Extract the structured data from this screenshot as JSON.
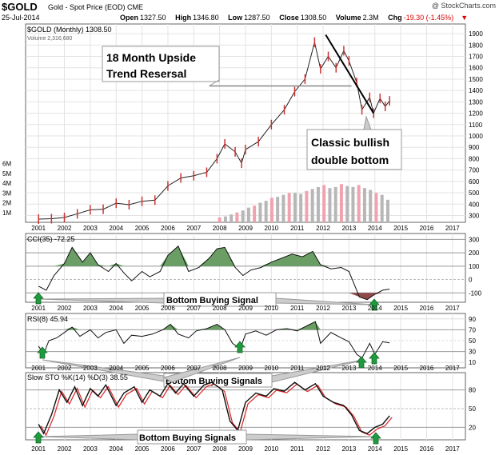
{
  "header": {
    "symbol": "$GOLD",
    "name": "Gold - Spot Price (EOD)",
    "exchange": "CME",
    "date": "25-Jul-2014",
    "brand": "@ StockCharts.com",
    "open_label": "Open",
    "open": "1327.50",
    "high_label": "High",
    "high": "1346.80",
    "low_label": "Low",
    "low": "1287.50",
    "close_label": "Close",
    "close": "1308.50",
    "volume_label": "Volume",
    "volume": "2.3M",
    "chg_label": "Chg",
    "chg": "-19.30 (-1.45%)"
  },
  "chart_data": {
    "type": "line",
    "x_ticks": [
      "2001",
      "2002",
      "2003",
      "2004",
      "2005",
      "2006",
      "2007",
      "2008",
      "2009",
      "2010",
      "2011",
      "2012",
      "2013",
      "2014",
      "2015",
      "2016",
      "2017"
    ],
    "price_panel": {
      "legend_label": "$GOLD (Monthly) 1308.50",
      "volume_legend_label": "Volume 2,316,680",
      "y_ticks": [
        300,
        400,
        500,
        600,
        700,
        800,
        900,
        1000,
        1100,
        1200,
        1300,
        1400,
        1500,
        1600,
        1700,
        1800,
        1900
      ],
      "volume_ticks": [
        "1M",
        "2M",
        "3M",
        "4M",
        "5M",
        "6M"
      ],
      "ylim": [
        240,
        1950
      ],
      "price_points": [
        [
          2001.0,
          268
        ],
        [
          2001.5,
          272
        ],
        [
          2002.0,
          282
        ],
        [
          2002.5,
          315
        ],
        [
          2003.0,
          350
        ],
        [
          2003.5,
          355
        ],
        [
          2004.0,
          408
        ],
        [
          2004.5,
          395
        ],
        [
          2005.0,
          425
        ],
        [
          2005.5,
          435
        ],
        [
          2006.0,
          560
        ],
        [
          2006.5,
          630
        ],
        [
          2007.0,
          650
        ],
        [
          2007.5,
          680
        ],
        [
          2007.9,
          800
        ],
        [
          2008.2,
          930
        ],
        [
          2008.6,
          860
        ],
        [
          2008.85,
          760
        ],
        [
          2009.0,
          880
        ],
        [
          2009.5,
          950
        ],
        [
          2010.0,
          1100
        ],
        [
          2010.5,
          1230
        ],
        [
          2010.9,
          1390
        ],
        [
          2011.3,
          1500
        ],
        [
          2011.67,
          1825
        ],
        [
          2011.9,
          1590
        ],
        [
          2012.2,
          1700
        ],
        [
          2012.5,
          1600
        ],
        [
          2012.8,
          1750
        ],
        [
          2013.0,
          1660
        ],
        [
          2013.3,
          1470
        ],
        [
          2013.5,
          1230
        ],
        [
          2013.8,
          1340
        ],
        [
          2013.95,
          1200
        ],
        [
          2014.2,
          1330
        ],
        [
          2014.4,
          1260
        ],
        [
          2014.57,
          1308.5
        ]
      ],
      "volume_values": [
        0.5,
        0.6,
        0.8,
        1.0,
        1.2,
        1.5,
        1.7,
        2.0,
        2.2,
        2.5,
        2.6,
        2.8,
        3.0,
        3.0,
        2.9,
        3.2,
        3.4,
        3.6,
        3.8,
        3.5,
        3.6,
        3.9,
        3.7,
        3.6,
        3.8,
        3.5,
        3.3,
        3.0,
        2.8,
        2.3
      ],
      "annotation_trend": "18 Month Upside Trend Resersal",
      "annotation_bottom": "Classic bullish double bottom"
    },
    "cci_panel": {
      "legend_label": "CCI(35) -72.25",
      "y_ticks": [
        300,
        200,
        100,
        0,
        -100
      ],
      "ylim": [
        -170,
        320
      ],
      "points": [
        [
          2001.0,
          -50
        ],
        [
          2001.3,
          -80
        ],
        [
          2001.6,
          30
        ],
        [
          2002.0,
          120
        ],
        [
          2002.3,
          240
        ],
        [
          2002.7,
          130
        ],
        [
          2003.0,
          200
        ],
        [
          2003.3,
          110
        ],
        [
          2003.7,
          60
        ],
        [
          2004.0,
          120
        ],
        [
          2004.3,
          50
        ],
        [
          2004.6,
          -10
        ],
        [
          2005.0,
          60
        ],
        [
          2005.3,
          20
        ],
        [
          2005.7,
          60
        ],
        [
          2006.0,
          180
        ],
        [
          2006.4,
          250
        ],
        [
          2006.8,
          60
        ],
        [
          2007.2,
          90
        ],
        [
          2007.6,
          160
        ],
        [
          2007.9,
          230
        ],
        [
          2008.2,
          240
        ],
        [
          2008.6,
          90
        ],
        [
          2008.9,
          30
        ],
        [
          2009.2,
          70
        ],
        [
          2009.6,
          90
        ],
        [
          2010.0,
          130
        ],
        [
          2010.4,
          160
        ],
        [
          2010.8,
          190
        ],
        [
          2011.2,
          170
        ],
        [
          2011.6,
          210
        ],
        [
          2011.9,
          110
        ],
        [
          2012.3,
          80
        ],
        [
          2012.7,
          90
        ],
        [
          2013.0,
          60
        ],
        [
          2013.4,
          -130
        ],
        [
          2013.7,
          -150
        ],
        [
          2014.0,
          -110
        ],
        [
          2014.3,
          -80
        ],
        [
          2014.57,
          -72.25
        ]
      ],
      "signal_label": "Bottom Buying Signal"
    },
    "rsi_panel": {
      "legend_label": "RSI(8) 45.94",
      "y_ticks": [
        90,
        70,
        50,
        30,
        10
      ],
      "ylim": [
        0,
        100
      ],
      "points": [
        [
          2001.0,
          40
        ],
        [
          2001.2,
          25
        ],
        [
          2001.4,
          50
        ],
        [
          2001.7,
          55
        ],
        [
          2002.0,
          65
        ],
        [
          2002.3,
          75
        ],
        [
          2002.6,
          58
        ],
        [
          2003.0,
          70
        ],
        [
          2003.3,
          55
        ],
        [
          2003.6,
          65
        ],
        [
          2004.0,
          70
        ],
        [
          2004.3,
          45
        ],
        [
          2004.6,
          60
        ],
        [
          2005.0,
          58
        ],
        [
          2005.4,
          62
        ],
        [
          2005.8,
          70
        ],
        [
          2006.1,
          80
        ],
        [
          2006.4,
          62
        ],
        [
          2006.8,
          55
        ],
        [
          2007.1,
          68
        ],
        [
          2007.5,
          72
        ],
        [
          2007.9,
          80
        ],
        [
          2008.2,
          70
        ],
        [
          2008.5,
          45
        ],
        [
          2008.8,
          35
        ],
        [
          2009.0,
          62
        ],
        [
          2009.4,
          68
        ],
        [
          2009.8,
          60
        ],
        [
          2010.2,
          70
        ],
        [
          2010.6,
          72
        ],
        [
          2011.0,
          68
        ],
        [
          2011.4,
          78
        ],
        [
          2011.7,
          85
        ],
        [
          2011.9,
          45
        ],
        [
          2012.3,
          65
        ],
        [
          2012.7,
          55
        ],
        [
          2013.0,
          48
        ],
        [
          2013.3,
          25
        ],
        [
          2013.5,
          18
        ],
        [
          2013.8,
          45
        ],
        [
          2014.0,
          25
        ],
        [
          2014.3,
          48
        ],
        [
          2014.57,
          45.94
        ]
      ]
    },
    "sto_panel": {
      "legend_label": "Slow STO %K(14) %D(3) 38.55",
      "y_ticks": [
        80,
        50,
        20
      ],
      "ylim": [
        0,
        100
      ],
      "k_points": [
        [
          2001.0,
          25
        ],
        [
          2001.2,
          10
        ],
        [
          2001.5,
          40
        ],
        [
          2001.8,
          80
        ],
        [
          2002.1,
          60
        ],
        [
          2002.4,
          85
        ],
        [
          2002.7,
          55
        ],
        [
          2003.0,
          82
        ],
        [
          2003.3,
          70
        ],
        [
          2003.6,
          88
        ],
        [
          2004.0,
          55
        ],
        [
          2004.3,
          75
        ],
        [
          2004.7,
          85
        ],
        [
          2005.0,
          60
        ],
        [
          2005.3,
          80
        ],
        [
          2005.7,
          70
        ],
        [
          2006.0,
          90
        ],
        [
          2006.3,
          75
        ],
        [
          2006.6,
          90
        ],
        [
          2007.0,
          70
        ],
        [
          2007.4,
          88
        ],
        [
          2007.7,
          92
        ],
        [
          2008.1,
          80
        ],
        [
          2008.4,
          30
        ],
        [
          2008.7,
          15
        ],
        [
          2009.0,
          60
        ],
        [
          2009.4,
          75
        ],
        [
          2009.8,
          70
        ],
        [
          2010.1,
          82
        ],
        [
          2010.5,
          78
        ],
        [
          2010.9,
          92
        ],
        [
          2011.3,
          80
        ],
        [
          2011.7,
          90
        ],
        [
          2012.0,
          70
        ],
        [
          2012.4,
          60
        ],
        [
          2012.8,
          55
        ],
        [
          2013.1,
          40
        ],
        [
          2013.4,
          15
        ],
        [
          2013.7,
          10
        ],
        [
          2014.0,
          20
        ],
        [
          2014.3,
          25
        ],
        [
          2014.57,
          38.55
        ]
      ]
    }
  },
  "labels": {
    "rsi_signal_label": "Bottom Buying Signals",
    "sto_signal_label": "Bottom Buying Signals"
  }
}
